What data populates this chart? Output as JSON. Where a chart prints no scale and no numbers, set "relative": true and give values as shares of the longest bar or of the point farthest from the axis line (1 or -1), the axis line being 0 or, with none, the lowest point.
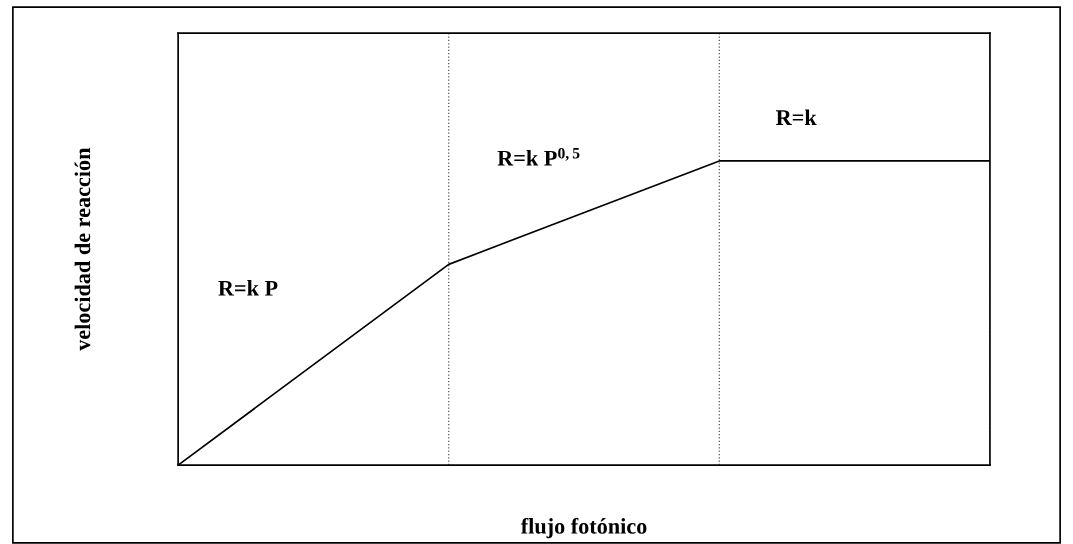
{
  "chart_data": {
    "type": "line",
    "xlabel": "flujo fotónico",
    "ylabel": "velocidad de reacción",
    "categories": [
      null,
      null,
      null,
      null
    ],
    "relative": true,
    "series": [
      {
        "color": "#000000",
        "values": [
          0,
          0.66,
          1,
          1
        ]
      }
    ],
    "annotations": [
      "R=k P",
      "R=k P$^{0,5}$",
      "R=k"
    ],
    "grid": "x",
    "line_style": "solid",
    "marker": "none",
    "tick_labels": false,
    "legend": false
  }
}
